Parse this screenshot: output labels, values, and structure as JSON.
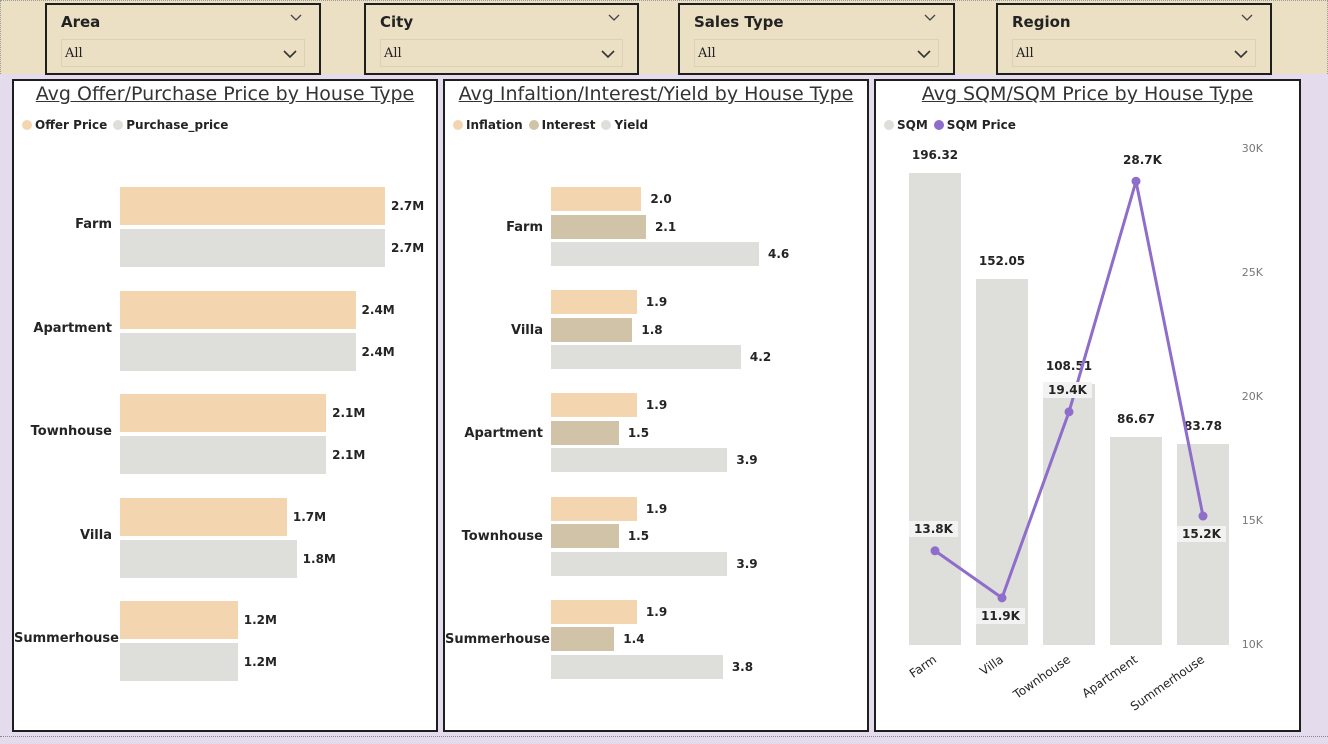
{
  "slicers": [
    {
      "title": "Area",
      "value": "All"
    },
    {
      "title": "City",
      "value": "All"
    },
    {
      "title": "Sales Type",
      "value": "All"
    },
    {
      "title": "Region",
      "value": "All"
    }
  ],
  "colors": {
    "offer": "#f3d6b0",
    "purchase": "#dedfda",
    "inflation": "#f3d6b0",
    "interest": "#d0c3a8",
    "yield": "#dedfda",
    "sqm": "#dedfda",
    "sqm_price": "#8e6dcb"
  },
  "chart_data": [
    {
      "type": "bar",
      "title": "Avg Offer/Purchase Price by House Type",
      "orientation": "horizontal",
      "categories": [
        "Farm",
        "Apartment",
        "Townhouse",
        "Villa",
        "Summerhouse"
      ],
      "series": [
        {
          "name": "Offer Price",
          "values": [
            2.7,
            2.4,
            2.1,
            1.7,
            1.2
          ],
          "labels": [
            "2.7M",
            "2.4M",
            "2.1M",
            "1.7M",
            "1.2M"
          ]
        },
        {
          "name": "Purchase_price",
          "values": [
            2.7,
            2.4,
            2.1,
            1.8,
            1.2
          ],
          "labels": [
            "2.7M",
            "2.4M",
            "2.1M",
            "1.8M",
            "1.2M"
          ]
        }
      ],
      "legend": "top-left"
    },
    {
      "type": "bar",
      "title": "Avg Infaltion/Interest/Yield by House Type",
      "orientation": "horizontal",
      "categories": [
        "Farm",
        "Villa",
        "Apartment",
        "Townhouse",
        "Summerhouse"
      ],
      "series": [
        {
          "name": "Inflation",
          "values": [
            2.0,
            1.9,
            1.9,
            1.9,
            1.9
          ],
          "labels": [
            "2.0",
            "1.9",
            "1.9",
            "1.9",
            "1.9"
          ]
        },
        {
          "name": "Interest",
          "values": [
            2.1,
            1.8,
            1.5,
            1.5,
            1.4
          ],
          "labels": [
            "2.1",
            "1.8",
            "1.5",
            "1.5",
            "1.4"
          ]
        },
        {
          "name": "Yield",
          "values": [
            4.6,
            4.2,
            3.9,
            3.9,
            3.8
          ],
          "labels": [
            "4.6",
            "4.2",
            "3.9",
            "3.9",
            "3.8"
          ]
        }
      ],
      "legend": "top-left"
    },
    {
      "type": "bar",
      "title": "Avg SQM/SQM Price by House Type",
      "categories": [
        "Farm",
        "Villa",
        "Townhouse",
        "Apartment",
        "Summerhouse"
      ],
      "series": [
        {
          "name": "SQM",
          "type": "bar",
          "values": [
            196.32,
            152.05,
            108.51,
            86.67,
            83.78
          ],
          "labels": [
            "196.32",
            "152.05",
            "108.51",
            "86.67",
            "83.78"
          ]
        },
        {
          "name": "SQM Price",
          "type": "line",
          "axis": "right",
          "values": [
            13800,
            11900,
            19400,
            28700,
            15200
          ],
          "labels": [
            "13.8K",
            "11.9K",
            "19.4K",
            "28.7K",
            "15.2K"
          ]
        }
      ],
      "y2_ticks": [
        "30K",
        "25K",
        "20K",
        "15K",
        "10K"
      ],
      "y2lim": [
        10000,
        30000
      ],
      "legend": "top-left"
    }
  ]
}
